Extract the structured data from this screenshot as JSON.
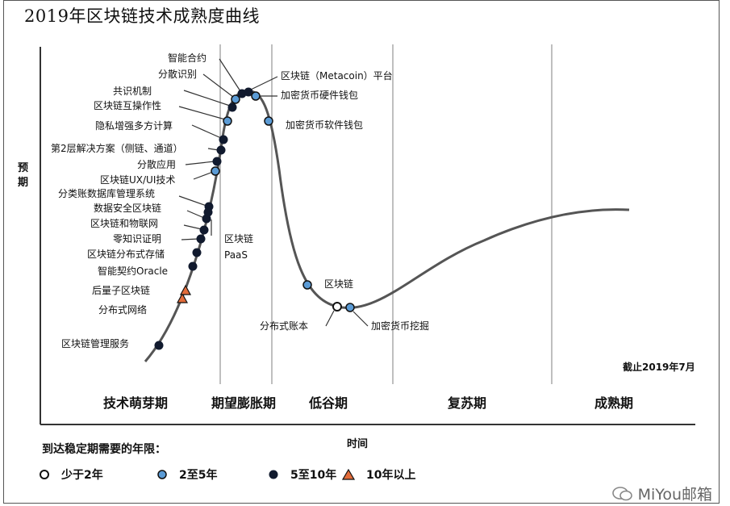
{
  "title": "2019年区块链技术成熟度曲线",
  "chart_data": {
    "type": "hype-cycle",
    "title": "2019年区块链技术成熟度曲线",
    "xlabel": "时间",
    "ylabel": "预期",
    "cutoff_note": "截止2019年7月",
    "phases": [
      "技术萌芽期",
      "期望膨胀期",
      "低谷期",
      "复苏期",
      "成熟期"
    ],
    "legend_title": "到达稳定期需要的年限：",
    "legend": [
      {
        "key": "lt2",
        "label": "少于2年",
        "marker": "circle",
        "color": "#ffffff"
      },
      {
        "key": "2to5",
        "label": "2至5年",
        "marker": "circle",
        "color": "#5b9bd5"
      },
      {
        "key": "5to10",
        "label": "5至10年",
        "marker": "circle",
        "color": "#111a2e"
      },
      {
        "key": "gt10",
        "label": "10年以上",
        "marker": "triangle",
        "color": "#e36c3a"
      }
    ],
    "points": [
      {
        "label": "区块链管理服务",
        "category": "5to10"
      },
      {
        "label": "分布式网络",
        "category": "gt10"
      },
      {
        "label": "后量子区块链",
        "category": "gt10"
      },
      {
        "label": "智能契约Oracle",
        "category": "5to10"
      },
      {
        "label": "区块链分布式存储",
        "category": "5to10"
      },
      {
        "label": "零知识证明",
        "category": "5to10"
      },
      {
        "label": "区块链和物联网",
        "category": "5to10"
      },
      {
        "label": "数据安全区块链",
        "category": "5to10"
      },
      {
        "label": "分类账数据库管理系统",
        "category": "5to10"
      },
      {
        "label": "区块链PaaS",
        "category": "5to10"
      },
      {
        "label": "区块链UX/UI技术",
        "category": "2to5"
      },
      {
        "label": "分散应用",
        "category": "5to10"
      },
      {
        "label": "第2层解决方案（侧链、通道）",
        "category": "5to10"
      },
      {
        "label": "隐私增强多方计算",
        "category": "5to10"
      },
      {
        "label": "区块链互操作性",
        "category": "2to5"
      },
      {
        "label": "共识机制",
        "category": "5to10"
      },
      {
        "label": "分散识别",
        "category": "2to5"
      },
      {
        "label": "智能合约",
        "category": "5to10"
      },
      {
        "label": "区块链（Metacoin）平台",
        "category": "5to10"
      },
      {
        "label": "加密货币硬件钱包",
        "category": "2to5"
      },
      {
        "label": "加密货币软件钱包",
        "category": "2to5"
      },
      {
        "label": "区块链",
        "category": "2to5"
      },
      {
        "label": "分布式账本",
        "category": "lt2"
      },
      {
        "label": "加密货币挖掘",
        "category": "2to5"
      }
    ],
    "texts": {
      "paas_line1": "区块链",
      "paas_line2": "PaaS"
    }
  },
  "watermark": "MiYou邮箱",
  "colors": {
    "curve": "#555555",
    "divider": "#aaaaaa",
    "outline": "#222222"
  }
}
